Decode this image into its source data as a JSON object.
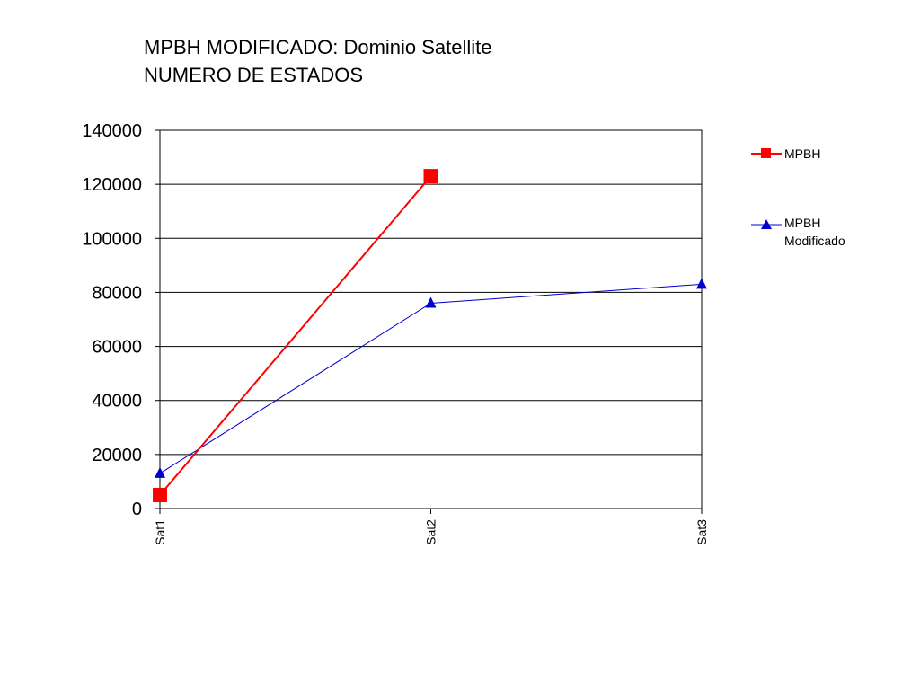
{
  "chart_data": {
    "type": "line",
    "title_line1": "MPBH MODIFICADO: Dominio Satellite",
    "title_line2": "NUMERO DE ESTADOS",
    "categories": [
      "Sat1",
      "Sat2",
      "Sat3"
    ],
    "ylim": [
      0,
      140000
    ],
    "yticks": [
      "0",
      "20000",
      "40000",
      "60000",
      "80000",
      "100000",
      "120000",
      "140000"
    ],
    "grid": true,
    "legend_position": "right",
    "series": [
      {
        "name": "MPBH",
        "color": "#ff0000",
        "marker": "square",
        "values": [
          5000,
          123000,
          null
        ]
      },
      {
        "name_line1": "MPBH",
        "name_line2": "Modificado",
        "color": "#0000cc",
        "marker": "triangle",
        "values": [
          13000,
          76000,
          83000
        ]
      }
    ]
  }
}
